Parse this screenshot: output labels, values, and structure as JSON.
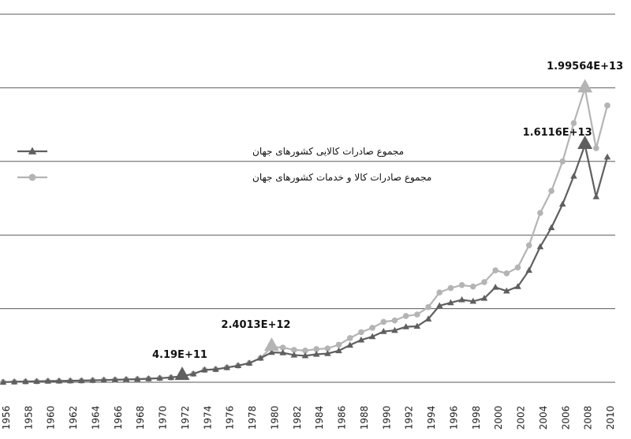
{
  "chart_data": {
    "type": "line",
    "x": [
      1956,
      1957,
      1958,
      1959,
      1960,
      1961,
      1962,
      1963,
      1964,
      1965,
      1966,
      1967,
      1968,
      1969,
      1970,
      1971,
      1972,
      1973,
      1974,
      1975,
      1976,
      1977,
      1978,
      1979,
      1980,
      1981,
      1982,
      1983,
      1984,
      1985,
      1986,
      1987,
      1988,
      1989,
      1990,
      1991,
      1992,
      1993,
      1994,
      1995,
      1996,
      1997,
      1998,
      1999,
      2000,
      2001,
      2002,
      2003,
      2004,
      2005,
      2006,
      2007,
      2008,
      2009,
      2010
    ],
    "series": [
      {
        "name": "مجموع صادرات کالایی کشورهای جهان",
        "color": "#5f5f5f",
        "marker": "triangle",
        "values": [
          10000000000.0,
          30000000000.0,
          50000000000.0,
          60000000000.0,
          80000000000.0,
          90000000000.0,
          100000000000.0,
          110000000000.0,
          130000000000.0,
          150000000000.0,
          170000000000.0,
          190000000000.0,
          210000000000.0,
          240000000000.0,
          280000000000.0,
          320000000000.0,
          419000000000.0,
          570000000000.0,
          840000000000.0,
          880000000000.0,
          1000000000000.0,
          1130000000000.0,
          1300000000000.0,
          1640000000000.0,
          2030000000000.0,
          2000000000000.0,
          1850000000000.0,
          1800000000000.0,
          1900000000000.0,
          1950000000000.0,
          2140000000000.0,
          2520000000000.0,
          2870000000000.0,
          3100000000000.0,
          3450000000000.0,
          3520000000000.0,
          3770000000000.0,
          3800000000000.0,
          4300000000000.0,
          5200000000000.0,
          5400000000000.0,
          5600000000000.0,
          5500000000000.0,
          5700000000000.0,
          6450000000000.0,
          6200000000000.0,
          6500000000000.0,
          7600000000000.0,
          9200000000000.0,
          10500000000000.0,
          12100000000000.0,
          14000000000000.0,
          16116000000000.0,
          12600000000000.0,
          15300000000000.0
        ]
      },
      {
        "name": "مجموع صادرات کالا و خدمات کشورهای جهان",
        "color": "#b4b4b4",
        "marker": "circle",
        "values": [
          10000000000.0,
          30000000000.0,
          50000000000.0,
          60000000000.0,
          80000000000.0,
          90000000000.0,
          100000000000.0,
          110000000000.0,
          130000000000.0,
          150000000000.0,
          170000000000.0,
          190000000000.0,
          210000000000.0,
          240000000000.0,
          280000000000.0,
          320000000000.0,
          419000000000.0,
          570000000000.0,
          840000000000.0,
          880000000000.0,
          1000000000000.0,
          1130000000000.0,
          1300000000000.0,
          1640000000000.0,
          2401300000000.0,
          2350000000000.0,
          2200000000000.0,
          2150000000000.0,
          2250000000000.0,
          2300000000000.0,
          2550000000000.0,
          3000000000000.0,
          3400000000000.0,
          3700000000000.0,
          4100000000000.0,
          4200000000000.0,
          4500000000000.0,
          4600000000000.0,
          5100000000000.0,
          6100000000000.0,
          6400000000000.0,
          6600000000000.0,
          6500000000000.0,
          6800000000000.0,
          7600000000000.0,
          7400000000000.0,
          7800000000000.0,
          9300000000000.0,
          11500000000000.0,
          13000000000000.0,
          15000000000000.0,
          17600000000000.0,
          19956400000000.0,
          15900000000000.0,
          18800000000000.0
        ]
      }
    ],
    "xticks": [
      1956,
      1958,
      1960,
      1962,
      1964,
      1966,
      1968,
      1970,
      1972,
      1974,
      1976,
      1978,
      1980,
      1982,
      1984,
      1986,
      1988,
      1990,
      1992,
      1994,
      1996,
      1998,
      2000,
      2002,
      2004,
      2006,
      2008,
      2010
    ],
    "xtick_labels": [
      "1956",
      "1958",
      "1960",
      "1962",
      "1964",
      "1966",
      "1968",
      "1970",
      "1972",
      "1974",
      "1976",
      "1978",
      "1980",
      "1982",
      "1984",
      "1986",
      "1988",
      "1990",
      "1992",
      "1994",
      "1996",
      "1998",
      "2000",
      "2002",
      "2004",
      "2006",
      "2008",
      "2010"
    ],
    "ylim": [
      0,
      25000000000000
    ],
    "ygrid": [
      0,
      5000000000000,
      10000000000000,
      15000000000000,
      20000000000000,
      25000000000000
    ],
    "grid": true,
    "legend_position": "top-left",
    "annotations": [
      {
        "text": "4.19E+11",
        "x": 1972,
        "y": 419000000000,
        "marker": "triangle",
        "color": "#5f5f5f"
      },
      {
        "text": "2.4013E+12",
        "x": 1980,
        "y": 2401300000000,
        "marker": "triangle",
        "color": "#b4b4b4"
      },
      {
        "text": "1.6116E+13",
        "x": 2008,
        "y": 16116000000000,
        "marker": "triangle",
        "color": "#5f5f5f"
      },
      {
        "text": "1.99564E+13",
        "x": 2008,
        "y": 19956400000000,
        "marker": "triangle",
        "color": "#b4b4b4"
      }
    ],
    "title": "",
    "xlabel": "",
    "ylabel": ""
  }
}
